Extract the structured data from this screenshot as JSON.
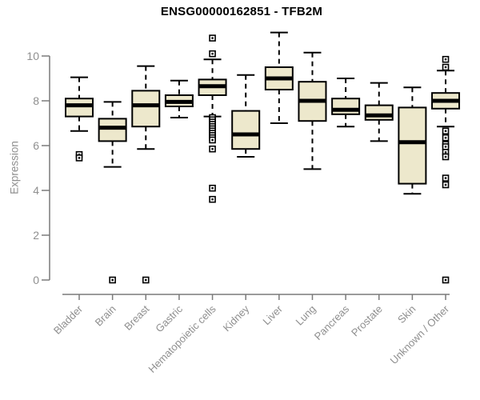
{
  "chart_data": {
    "type": "boxplot",
    "title": "ENSG00000162851 - TFB2M",
    "ylabel": "Expression",
    "xlabel": "",
    "ylim": [
      0,
      10
    ],
    "yticks": [
      0,
      2,
      4,
      6,
      8,
      10
    ],
    "grid": false,
    "legend": "none",
    "box_fill": "#EDE8CC",
    "box_stroke": "#000000",
    "axis_color": "#7a7a7a",
    "label_color": "#8f8f8f",
    "categories": [
      "Bladder",
      "Brain",
      "Breast",
      "Gastric",
      "Hematopoietic cells",
      "Kidney",
      "Liver",
      "Lung",
      "Pancreas",
      "Prostate",
      "Skin",
      "Unknown / Other"
    ],
    "series": [
      {
        "name": "Bladder",
        "whisker_low": 6.65,
        "q1": 7.3,
        "median": 7.8,
        "q3": 8.1,
        "whisker_high": 9.05,
        "outliers": [
          5.6,
          5.45
        ]
      },
      {
        "name": "Brain",
        "whisker_low": 5.05,
        "q1": 6.2,
        "median": 6.8,
        "q3": 7.2,
        "whisker_high": 7.95,
        "outliers": [
          0
        ]
      },
      {
        "name": "Breast",
        "whisker_low": 5.85,
        "q1": 6.85,
        "median": 7.8,
        "q3": 8.45,
        "whisker_high": 9.55,
        "outliers": [
          0
        ]
      },
      {
        "name": "Gastric",
        "whisker_low": 7.25,
        "q1": 7.75,
        "median": 7.95,
        "q3": 8.25,
        "whisker_high": 8.9,
        "outliers": []
      },
      {
        "name": "Hematopoietic cells",
        "whisker_low": 7.3,
        "q1": 8.25,
        "median": 8.65,
        "q3": 8.95,
        "whisker_high": 9.85,
        "outliers": [
          10.8,
          10.1,
          7.25,
          7.15,
          7.05,
          6.95,
          6.85,
          6.75,
          6.65,
          6.55,
          6.45,
          6.35,
          6.25,
          5.85,
          4.1,
          3.6
        ]
      },
      {
        "name": "Kidney",
        "whisker_low": 5.5,
        "q1": 5.85,
        "median": 6.5,
        "q3": 7.55,
        "whisker_high": 9.15,
        "outliers": []
      },
      {
        "name": "Liver",
        "whisker_low": 7.0,
        "q1": 8.5,
        "median": 9.0,
        "q3": 9.5,
        "whisker_high": 11.05,
        "outliers": []
      },
      {
        "name": "Lung",
        "whisker_low": 4.95,
        "q1": 7.1,
        "median": 8.0,
        "q3": 8.85,
        "whisker_high": 10.15,
        "outliers": []
      },
      {
        "name": "Pancreas",
        "whisker_low": 6.85,
        "q1": 7.4,
        "median": 7.6,
        "q3": 8.1,
        "whisker_high": 9.0,
        "outliers": []
      },
      {
        "name": "Prostate",
        "whisker_low": 6.2,
        "q1": 7.15,
        "median": 7.35,
        "q3": 7.8,
        "whisker_high": 8.8,
        "outliers": []
      },
      {
        "name": "Skin",
        "whisker_low": 3.85,
        "q1": 4.3,
        "median": 6.15,
        "q3": 7.7,
        "whisker_high": 8.6,
        "outliers": []
      },
      {
        "name": "Unknown / Other",
        "whisker_low": 6.85,
        "q1": 7.65,
        "median": 8.0,
        "q3": 8.35,
        "whisker_high": 9.35,
        "outliers": [
          9.85,
          9.5,
          6.65,
          6.35,
          6.05,
          5.95,
          5.7,
          5.5,
          4.55,
          4.25,
          0
        ]
      }
    ]
  }
}
